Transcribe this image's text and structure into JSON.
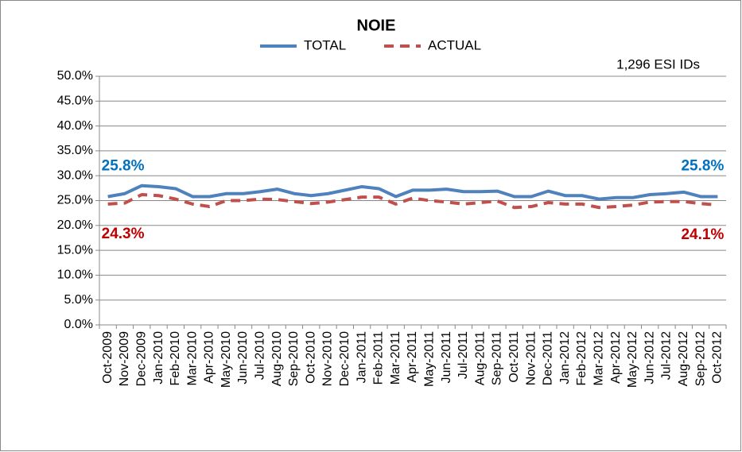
{
  "chart_data": {
    "type": "line",
    "title": "NOIE",
    "categories": [
      "Oct-2009",
      "Nov-2009",
      "Dec-2009",
      "Jan-2010",
      "Feb-2010",
      "Mar-2010",
      "Apr-2010",
      "May-2010",
      "Jun-2010",
      "Jul-2010",
      "Aug-2010",
      "Sep-2010",
      "Oct-2010",
      "Nov-2010",
      "Dec-2010",
      "Jan-2011",
      "Feb-2011",
      "Mar-2011",
      "Apr-2011",
      "May-2011",
      "Jun-2011",
      "Jul-2011",
      "Aug-2011",
      "Sep-2011",
      "Oct-2011",
      "Nov-2011",
      "Dec-2011",
      "Jan-2012",
      "Feb-2012",
      "Mar-2012",
      "Apr-2012",
      "May-2012",
      "Jun-2012",
      "Jul-2012",
      "Aug-2012",
      "Sep-2012",
      "Oct-2012"
    ],
    "series": [
      {
        "name": "TOTAL",
        "color": "#4f81bd",
        "dash": false,
        "values": [
          25.8,
          26.4,
          28.0,
          27.8,
          27.4,
          25.8,
          25.8,
          26.4,
          26.4,
          26.8,
          27.3,
          26.4,
          26.0,
          26.4,
          27.1,
          27.8,
          27.4,
          25.8,
          27.1,
          27.1,
          27.3,
          26.8,
          26.8,
          26.9,
          25.8,
          25.8,
          26.9,
          26.0,
          26.0,
          25.3,
          25.6,
          25.6,
          26.2,
          26.4,
          26.7,
          25.8,
          25.8
        ],
        "value_labels": [
          "25.8%",
          null,
          null,
          null,
          null,
          null,
          null,
          null,
          null,
          null,
          null,
          null,
          null,
          null,
          null,
          null,
          null,
          null,
          null,
          null,
          null,
          null,
          null,
          null,
          null,
          null,
          null,
          null,
          null,
          null,
          null,
          null,
          null,
          null,
          null,
          null,
          "25.8%"
        ],
        "label_color": "#0070c0"
      },
      {
        "name": "ACTUAL",
        "color": "#c0504d",
        "dash": true,
        "values": [
          24.3,
          24.5,
          26.2,
          26.0,
          25.3,
          24.3,
          23.8,
          25.0,
          25.0,
          25.3,
          25.2,
          24.8,
          24.4,
          24.7,
          25.2,
          25.7,
          25.7,
          24.3,
          25.5,
          25.0,
          24.7,
          24.3,
          24.6,
          24.9,
          23.6,
          23.8,
          24.6,
          24.3,
          24.3,
          23.6,
          23.8,
          24.1,
          24.7,
          24.8,
          24.8,
          24.4,
          24.1
        ],
        "value_labels": [
          "24.3%",
          null,
          null,
          null,
          null,
          null,
          null,
          null,
          null,
          null,
          null,
          null,
          null,
          null,
          null,
          null,
          null,
          null,
          null,
          null,
          null,
          null,
          null,
          null,
          null,
          null,
          null,
          null,
          null,
          null,
          null,
          null,
          null,
          null,
          null,
          null,
          "24.1%"
        ],
        "label_color": "#c00000"
      }
    ],
    "annotation": "1,296 ESI IDs",
    "ylim": [
      0,
      50
    ],
    "yticks": [
      {
        "value": 0,
        "label": "0.0%"
      },
      {
        "value": 5,
        "label": "5.0%"
      },
      {
        "value": 10,
        "label": "10.0%"
      },
      {
        "value": 15,
        "label": "15.0%"
      },
      {
        "value": 20,
        "label": "20.0%"
      },
      {
        "value": 25,
        "label": "25.0%"
      },
      {
        "value": 30,
        "label": "30.0%"
      },
      {
        "value": 35,
        "label": "35.0%"
      },
      {
        "value": 40,
        "label": "40.0%"
      },
      {
        "value": 45,
        "label": "45.0%"
      },
      {
        "value": 50,
        "label": "50.0%"
      }
    ],
    "grid": true,
    "legend": "top"
  }
}
